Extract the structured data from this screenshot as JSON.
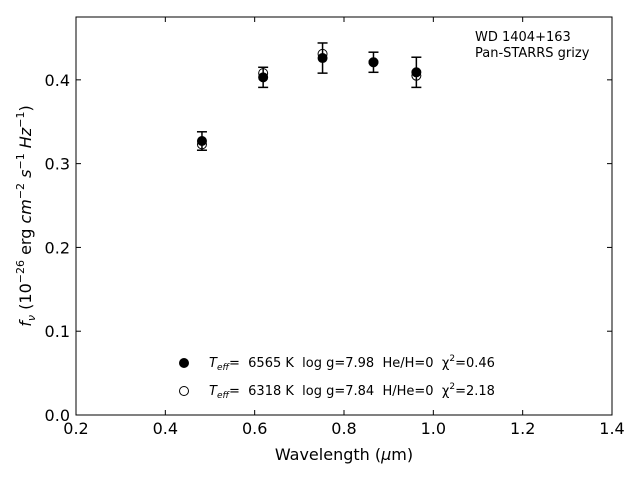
{
  "chart_data": {
    "type": "scatter",
    "title": "",
    "annotation_lines": [
      "WD 1404+163",
      "Pan-STARRS grizy"
    ],
    "xlabel": "Wavelength (μm)",
    "ylabel": "fν (10⁻²⁶ erg cm⁻² s⁻¹ Hz⁻¹)",
    "xlim": [
      0.2,
      1.4
    ],
    "ylim": [
      0.0,
      0.475
    ],
    "xticks": [
      0.2,
      0.4,
      0.6,
      0.8,
      1.0,
      1.2,
      1.4
    ],
    "xtick_labels": [
      "0.2",
      "0.4",
      "0.6",
      "0.8",
      "1.0",
      "1.2",
      "1.4"
    ],
    "yticks": [
      0.0,
      0.1,
      0.2,
      0.3,
      0.4
    ],
    "ytick_labels": [
      "0.0",
      "0.1",
      "0.2",
      "0.3",
      "0.4"
    ],
    "grid": false,
    "legend_position": "lower-center",
    "series": [
      {
        "name": "Teff= 6565 K log g=7.98 He/H=0 χ²=0.46",
        "legend_parts": {
          "T": "T",
          "sub": "eff",
          "rest": "=  6565 K  log g=7.98  He/H=0  χ",
          "sup": "2",
          "tail": "=0.46"
        },
        "marker": "filled-circle",
        "x": [
          0.482,
          0.619,
          0.752,
          0.866,
          0.962
        ],
        "y": [
          0.327,
          0.403,
          0.426,
          0.421,
          0.409
        ],
        "yerr": [
          0.011,
          0.012,
          0.018,
          0.012,
          0.018
        ]
      },
      {
        "name": "Teff= 6318 K log g=7.84 H/He=0 χ²=2.18",
        "legend_parts": {
          "T": "T",
          "sub": "eff",
          "rest": "=  6318 K  log g=7.84  H/He=0  χ",
          "sup": "2",
          "tail": "=2.18"
        },
        "marker": "open-circle",
        "x": [
          0.482,
          0.619,
          0.752,
          0.866,
          0.962
        ],
        "y": [
          0.323,
          0.408,
          0.431,
          0.421,
          0.405
        ]
      }
    ]
  }
}
